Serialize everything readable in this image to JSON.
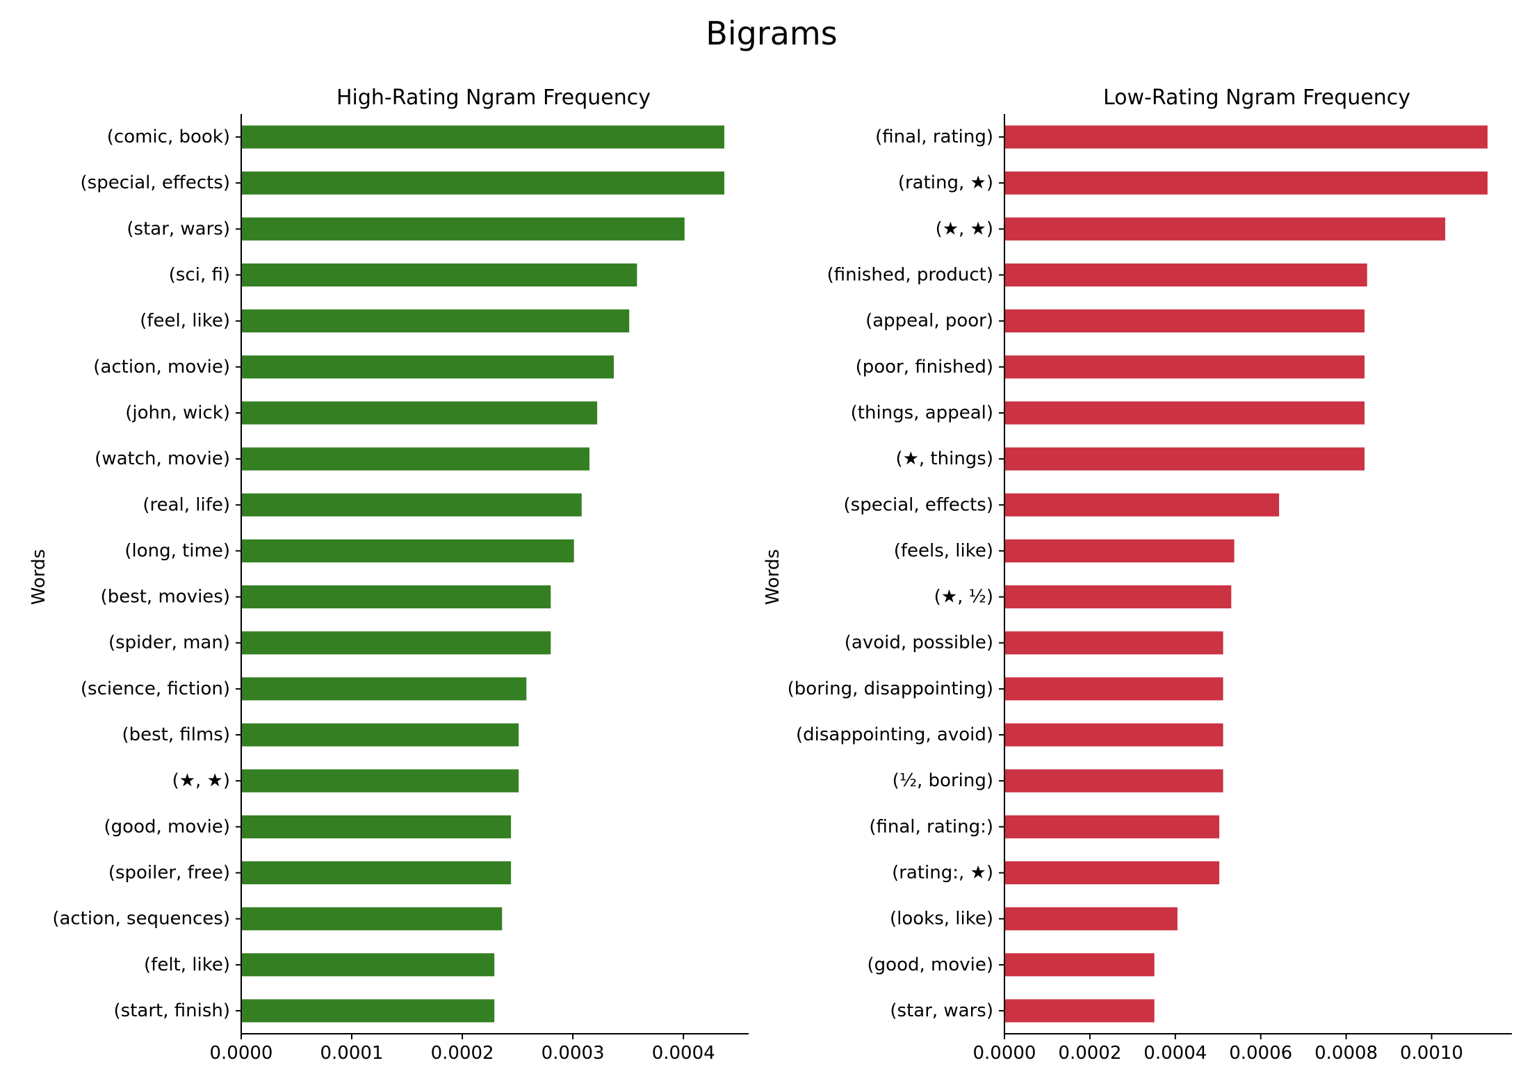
{
  "figure": {
    "suptitle": "Bigrams"
  },
  "chart_data": [
    {
      "type": "bar",
      "orientation": "horizontal",
      "title": "High-Rating Ngram Frequency",
      "ylabel": "Words",
      "xlabel": "",
      "color": "#357f23",
      "categories": [
        "(comic, book)",
        "(special, effects)",
        "(star, wars)",
        "(sci, fi)",
        "(feel, like)",
        "(action, movie)",
        "(john, wick)",
        "(watch, movie)",
        "(real, life)",
        "(long, time)",
        "(best, movies)",
        "(spider, man)",
        "(science, fiction)",
        "(best, films)",
        "(★, ★)",
        "(good, movie)",
        "(spoiler, free)",
        "(action, sequences)",
        "(felt, like)",
        "(start, finish)"
      ],
      "values": [
        0.000437,
        0.000437,
        0.000401,
        0.000358,
        0.000351,
        0.000337,
        0.000322,
        0.000315,
        0.000308,
        0.000301,
        0.00028,
        0.00028,
        0.000258,
        0.000251,
        0.000251,
        0.000244,
        0.000244,
        0.000236,
        0.000229,
        0.000229
      ],
      "xlim": [
        0,
        0.000459
      ],
      "xticks": [
        0,
        0.0001,
        0.0002,
        0.0003,
        0.0004
      ],
      "xtick_labels": [
        "0.0000",
        "0.0001",
        "0.0002",
        "0.0003",
        "0.0004"
      ],
      "grid": false,
      "legend": "none"
    },
    {
      "type": "bar",
      "orientation": "horizontal",
      "title": "Low-Rating Ngram Frequency",
      "ylabel": "Words",
      "xlabel": "",
      "color": "#cb3242",
      "categories": [
        "(final, rating)",
        "(rating, ★)",
        "(★, ★)",
        "(finished, product)",
        "(appeal, poor)",
        "(poor, finished)",
        "(things, appeal)",
        "(★, things)",
        "(special, effects)",
        "(feels, like)",
        "(★, ½)",
        "(avoid, possible)",
        "(boring, disappointing)",
        "(disappointing, avoid)",
        "(½, boring)",
        "(final, rating:)",
        "(rating:, ★)",
        "(looks, like)",
        "(good, movie)",
        "(star, wars)"
      ],
      "values": [
        0.001131,
        0.001131,
        0.001032,
        0.000849,
        0.000843,
        0.000843,
        0.000843,
        0.000843,
        0.000643,
        0.000538,
        0.000531,
        0.000512,
        0.000512,
        0.000512,
        0.000512,
        0.000503,
        0.000503,
        0.000405,
        0.000351,
        0.000351
      ],
      "xlim": [
        0,
        0.001188
      ],
      "xticks": [
        0,
        0.0002,
        0.0004,
        0.0006,
        0.0008,
        0.001
      ],
      "xtick_labels": [
        "0.0000",
        "0.0002",
        "0.0004",
        "0.0006",
        "0.0008",
        "0.0010"
      ],
      "grid": false,
      "legend": "none"
    }
  ]
}
